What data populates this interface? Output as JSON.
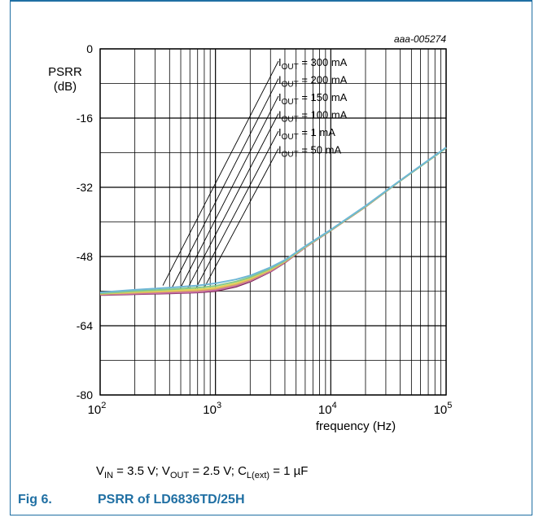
{
  "chart_data": {
    "type": "line",
    "ref_id": "aaa-005274",
    "ylabel_line1": "PSRR",
    "ylabel_line2": "(dB)",
    "xlabel": "frequency (Hz)",
    "x_scale": "log",
    "xlim": [
      100,
      100000
    ],
    "ylim": [
      -80,
      0
    ],
    "y_ticks": [
      "0",
      "-16",
      "-32",
      "-48",
      "-64",
      "-80"
    ],
    "x_ticks": [
      {
        "base": "10",
        "exp": "2"
      },
      {
        "base": "10",
        "exp": "3"
      },
      {
        "base": "10",
        "exp": "4"
      },
      {
        "base": "10",
        "exp": "5"
      }
    ],
    "grid": true,
    "series": [
      {
        "name": "IOUT = 300 mA",
        "label_prefix": "I",
        "label_sub": "OUT",
        "label_rest": " = 300 mA",
        "color": "#6fb7d6",
        "x": [
          100,
          200,
          400,
          700,
          1000,
          1500,
          2000,
          3000,
          4000,
          6000,
          10000,
          20000,
          40000,
          100000
        ],
        "y": [
          -56.3,
          -55.7,
          -55.2,
          -54.7,
          -54.2,
          -53.3,
          -52.4,
          -50.5,
          -48.8,
          -45.6,
          -41.8,
          -36.3,
          -30.4,
          -22.8
        ]
      },
      {
        "name": "IOUT = 200 mA",
        "label_prefix": "I",
        "label_sub": "OUT",
        "label_rest": " = 200 mA",
        "color": "#86c98a",
        "x": [
          100,
          200,
          400,
          700,
          1000,
          1500,
          2000,
          3000,
          4000,
          6000,
          10000,
          20000,
          40000,
          100000
        ],
        "y": [
          -56.5,
          -56.0,
          -55.6,
          -55.2,
          -54.8,
          -53.8,
          -52.8,
          -50.8,
          -49.0,
          -45.7,
          -41.9,
          -36.4,
          -30.5,
          -22.9
        ]
      },
      {
        "name": "IOUT = 150 mA",
        "label_prefix": "I",
        "label_sub": "OUT",
        "label_rest": " = 150 mA",
        "color": "#e3d35a",
        "x": [
          100,
          200,
          400,
          700,
          1000,
          1500,
          2000,
          3000,
          4000,
          6000,
          10000,
          20000,
          40000,
          100000
        ],
        "y": [
          -56.6,
          -56.2,
          -55.9,
          -55.6,
          -55.2,
          -54.2,
          -53.1,
          -51.0,
          -49.1,
          -45.8,
          -41.9,
          -36.4,
          -30.5,
          -22.9
        ]
      },
      {
        "name": "IOUT = 100 mA",
        "label_prefix": "I",
        "label_sub": "OUT",
        "label_rest": " = 100 mA",
        "color": "#d9a06b",
        "x": [
          100,
          200,
          400,
          700,
          1000,
          1500,
          2000,
          3000,
          4000,
          6000,
          10000,
          20000,
          40000,
          100000
        ],
        "y": [
          -56.7,
          -56.4,
          -56.1,
          -55.9,
          -55.5,
          -54.5,
          -53.4,
          -51.2,
          -49.2,
          -45.8,
          -42.0,
          -36.5,
          -30.5,
          -22.9
        ]
      },
      {
        "name": "IOUT = 1 mA",
        "label_prefix": "I",
        "label_sub": "OUT",
        "label_rest": " = 1 mA",
        "color": "#c46aa8",
        "x": [
          100,
          200,
          400,
          700,
          1000,
          1500,
          2000,
          3000,
          4000,
          6000,
          10000,
          20000,
          40000,
          100000
        ],
        "y": [
          -56.8,
          -56.6,
          -56.4,
          -56.2,
          -55.8,
          -54.8,
          -53.6,
          -51.4,
          -49.3,
          -45.9,
          -42.0,
          -36.5,
          -30.5,
          -22.9
        ]
      },
      {
        "name": "IOUT = 50 mA",
        "label_prefix": "I",
        "label_sub": "OUT",
        "label_rest": " = 50 mA",
        "color": "#7a2a50",
        "x": [
          100,
          200,
          400,
          700,
          1000,
          1500,
          2000,
          3000,
          4000,
          6000,
          10000,
          20000,
          40000,
          100000
        ],
        "y": [
          -56.9,
          -56.7,
          -56.5,
          -56.3,
          -56.0,
          -55.0,
          -53.8,
          -51.5,
          -49.4,
          -45.9,
          -42.0,
          -36.5,
          -30.5,
          -22.9
        ]
      }
    ]
  },
  "conditions": {
    "vin_main": "V",
    "vin_sub": "IN",
    "vin_rest": " = 3.5 V; ",
    "vout_main": "V",
    "vout_sub": "OUT",
    "vout_rest": " = 2.5 V; ",
    "cl_main": "C",
    "cl_sub": "L(ext)",
    "cl_rest": " = 1 µF"
  },
  "caption": {
    "number": "Fig 6.",
    "title": "PSRR of LD6836TD/25H"
  }
}
